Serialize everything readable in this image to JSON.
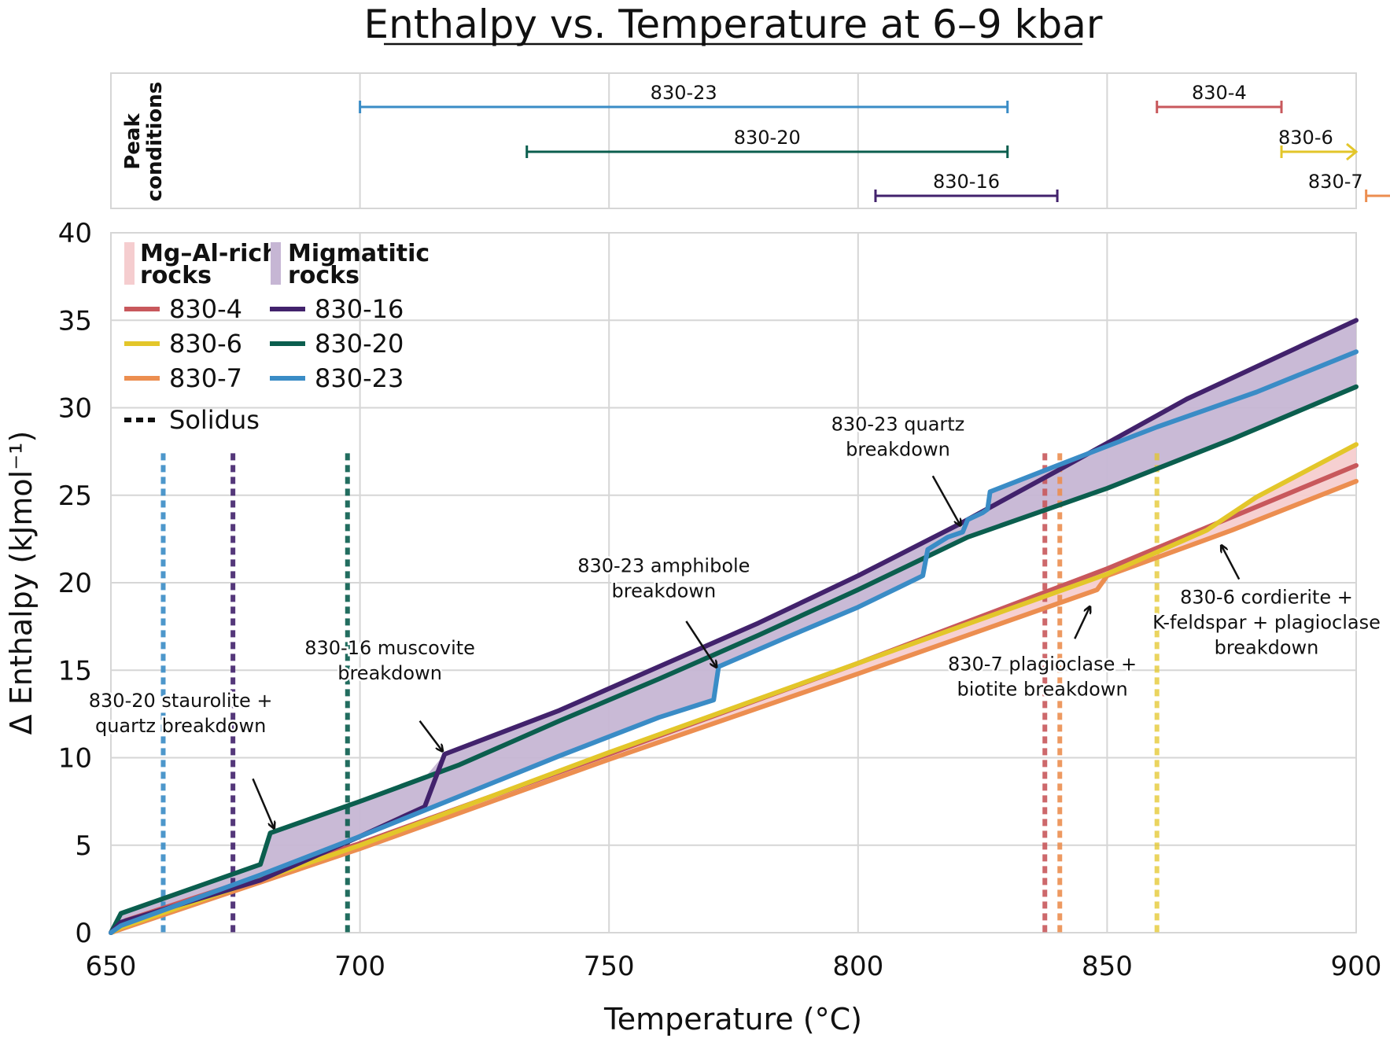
{
  "chart_data": {
    "type": "line",
    "title": "Enthalpy vs. Temperature at 6–9 kbar",
    "xlabel": "Temperature (°C)",
    "ylabel": "Δ Enthalpy (kJmol⁻¹)",
    "xlim": [
      650,
      900
    ],
    "ylim": [
      0,
      40
    ],
    "xticks": [
      650,
      700,
      750,
      800,
      850,
      900
    ],
    "yticks": [
      0,
      5,
      10,
      15,
      20,
      25,
      30,
      35,
      40
    ],
    "grid": true,
    "legend_position": "top-left",
    "colors": {
      "830-4": "#c8585c",
      "830-6": "#e3c62a",
      "830-7": "#ec8e50",
      "830-16": "#42226c",
      "830-20": "#0b5e4e",
      "830-23": "#3a8cc6",
      "mg_fill": "#f5cdcf",
      "mig_fill": "#c6b6d4"
    },
    "series": [
      {
        "name": "830-4",
        "group": "Mg–Al-rich rocks",
        "x": [
          650,
          653,
          700,
          750,
          800,
          850,
          900
        ],
        "y": [
          0,
          0.7,
          5.1,
          10.2,
          15.4,
          20.8,
          26.7
        ]
      },
      {
        "name": "830-6",
        "group": "Mg–Al-rich rocks",
        "x": [
          650,
          652,
          700,
          750,
          800,
          850,
          870,
          880,
          890,
          900
        ],
        "y": [
          0,
          0.3,
          5.0,
          10.3,
          15.4,
          20.5,
          23.0,
          24.9,
          26.4,
          27.9
        ]
      },
      {
        "name": "830-7",
        "group": "Mg–Al-rich rocks",
        "x": [
          650,
          652,
          700,
          750,
          800,
          848,
          850,
          875,
          900
        ],
        "y": [
          0,
          0.2,
          4.8,
          9.9,
          14.8,
          19.6,
          20.4,
          23.0,
          25.8
        ]
      },
      {
        "name": "830-16",
        "group": "Migmatitic rocks",
        "x": [
          650,
          652,
          680,
          700,
          713,
          717,
          740,
          760,
          780,
          800,
          820,
          840,
          866,
          900
        ],
        "y": [
          0,
          0.6,
          3.0,
          5.5,
          7.2,
          10.2,
          12.7,
          15.2,
          17.7,
          20.4,
          23.3,
          26.4,
          30.5,
          35.0
        ]
      },
      {
        "name": "830-20",
        "group": "Migmatitic rocks",
        "x": [
          650,
          652,
          680,
          682,
          700,
          720,
          740,
          760,
          780,
          800,
          822,
          850,
          875,
          900
        ],
        "y": [
          0,
          1.1,
          3.9,
          5.7,
          7.5,
          9.6,
          12.1,
          14.5,
          17.0,
          19.6,
          22.6,
          25.4,
          28.2,
          31.2
        ]
      },
      {
        "name": "830-23",
        "group": "Migmatitic rocks",
        "x": [
          650,
          652,
          680,
          700,
          720,
          740,
          760,
          771,
          772,
          785,
          800,
          813,
          814,
          818,
          821,
          822,
          825,
          826,
          826.5,
          840,
          860,
          880,
          900
        ],
        "y": [
          0,
          0.4,
          3.3,
          5.5,
          7.8,
          10.1,
          12.3,
          13.3,
          15.2,
          16.8,
          18.6,
          20.4,
          21.9,
          22.6,
          22.9,
          23.6,
          24.0,
          24.2,
          25.2,
          26.7,
          28.9,
          30.9,
          33.2
        ]
      }
    ],
    "solidus": [
      {
        "sample": "830-23",
        "x": 660.5
      },
      {
        "sample": "830-16",
        "x": 674.5
      },
      {
        "sample": "830-20",
        "x": 697.5
      },
      {
        "sample": "830-4",
        "x": 837.5
      },
      {
        "sample": "830-7",
        "x": 840.5
      },
      {
        "sample": "830-6",
        "x": 860
      }
    ],
    "peak_conditions": {
      "label_line1": "Peak",
      "label_line2": "conditions",
      "ranges": [
        {
          "sample": "830-23",
          "row": 1,
          "from": 700,
          "to": 830,
          "open": false
        },
        {
          "sample": "830-20",
          "row": 2,
          "from": 733.5,
          "to": 830,
          "open": false
        },
        {
          "sample": "830-16",
          "row": 3,
          "from": 803.5,
          "to": 840,
          "open": false
        },
        {
          "sample": "830-4",
          "row": 1,
          "from": 860,
          "to": 885,
          "open": false
        },
        {
          "sample": "830-6",
          "row": 2,
          "from": 885,
          "to": 900,
          "open": true
        },
        {
          "sample": "830-7",
          "row": 3,
          "from": 902,
          "to": 909,
          "open": true
        }
      ]
    },
    "annotations": [
      {
        "lines": [
          "830-20 staurolite +",
          "quartz breakdown"
        ],
        "text_x": 664,
        "text_y": 12.9,
        "arrow_from": [
          678.5,
          8.8
        ],
        "arrow_to": [
          682.7,
          6.0
        ]
      },
      {
        "lines": [
          "830-16 muscovite",
          "breakdown"
        ],
        "text_x": 706,
        "text_y": 15.9,
        "arrow_from": [
          712,
          12.1
        ],
        "arrow_to": [
          716.5,
          10.4
        ]
      },
      {
        "lines": [
          "830-23 amphibole",
          "breakdown"
        ],
        "text_x": 761,
        "text_y": 20.6,
        "arrow_from": [
          765.5,
          17.8
        ],
        "arrow_to": [
          771.5,
          15.2
        ]
      },
      {
        "lines": [
          "830-23 quartz",
          "breakdown"
        ],
        "text_x": 808,
        "text_y": 28.7,
        "arrow_from": [
          815,
          26.1
        ],
        "arrow_to": [
          820.5,
          23.3
        ]
      },
      {
        "lines": [
          "830-7 plagioclase +",
          "biotite breakdown"
        ],
        "text_x": 837,
        "text_y": 15.0,
        "arrow_from": [
          843.5,
          16.8
        ],
        "arrow_to": [
          846.5,
          18.6
        ]
      },
      {
        "lines": [
          "830-6 cordierite  +",
          "K-feldspar + plagioclase",
          "breakdown"
        ],
        "text_x": 882,
        "text_y": 18.8,
        "arrow_from": [
          876.5,
          20.2
        ],
        "arrow_to": [
          873,
          22.1
        ]
      }
    ],
    "legend": {
      "group1": [
        "Mg–Al-rich",
        "rocks"
      ],
      "group2": [
        "Migmatitic",
        "rocks"
      ],
      "col1": [
        "830-4",
        "830-6",
        "830-7"
      ],
      "col2": [
        "830-16",
        "830-20",
        "830-23"
      ],
      "solidus": "Solidus"
    }
  }
}
